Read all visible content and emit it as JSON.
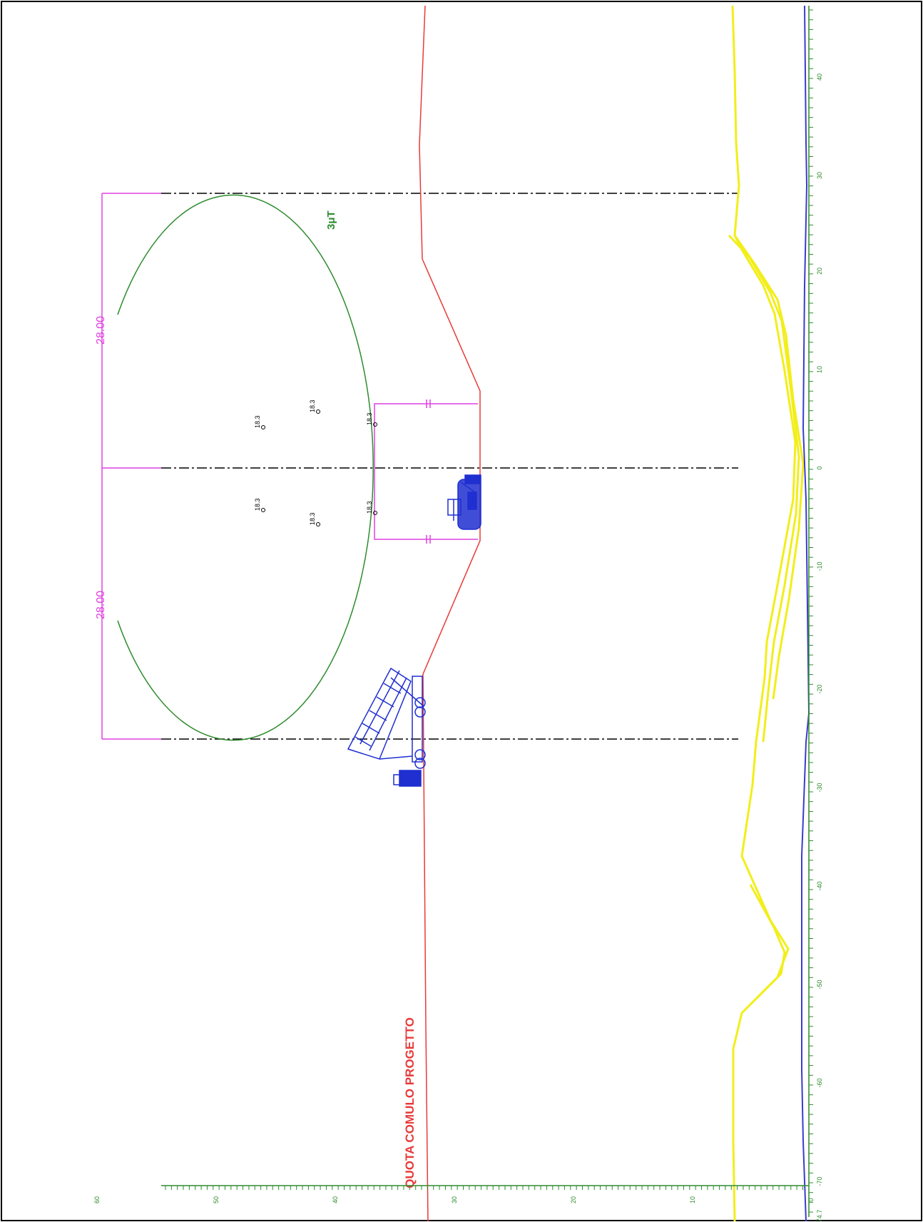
{
  "labels": {
    "project_level": "QUOTA COMULO PROGETTO",
    "field_level": "3μT",
    "dim_left": "28.00",
    "dim_right": "28.00",
    "conductor_labels": [
      "18.3",
      "18.3",
      "18.3",
      "18.3",
      "18.3",
      "18.3"
    ]
  },
  "axes": {
    "horizontal_scale_labels": [
      "-74.7",
      "-70",
      "-60",
      "-50",
      "-40",
      "-30",
      "-20",
      "-10",
      "0",
      "10",
      "20",
      "30",
      "40"
    ],
    "vertical_scale_labels": [
      "0",
      "10",
      "20",
      "30",
      "40",
      "50",
      "60"
    ]
  },
  "colors": {
    "frame": "#000000",
    "profile_red": "#e83a3a",
    "circle_green": "#2e8b2e",
    "dimension_magenta": "#e040e0",
    "machinery_blue": "#1f2fd0",
    "field_yellow": "#f2ee1a",
    "baseline_blue": "#3b3bd0",
    "axis_green": "#2e8b2e"
  },
  "icons": [
    "dump-truck-icon",
    "excavator-icon"
  ]
}
